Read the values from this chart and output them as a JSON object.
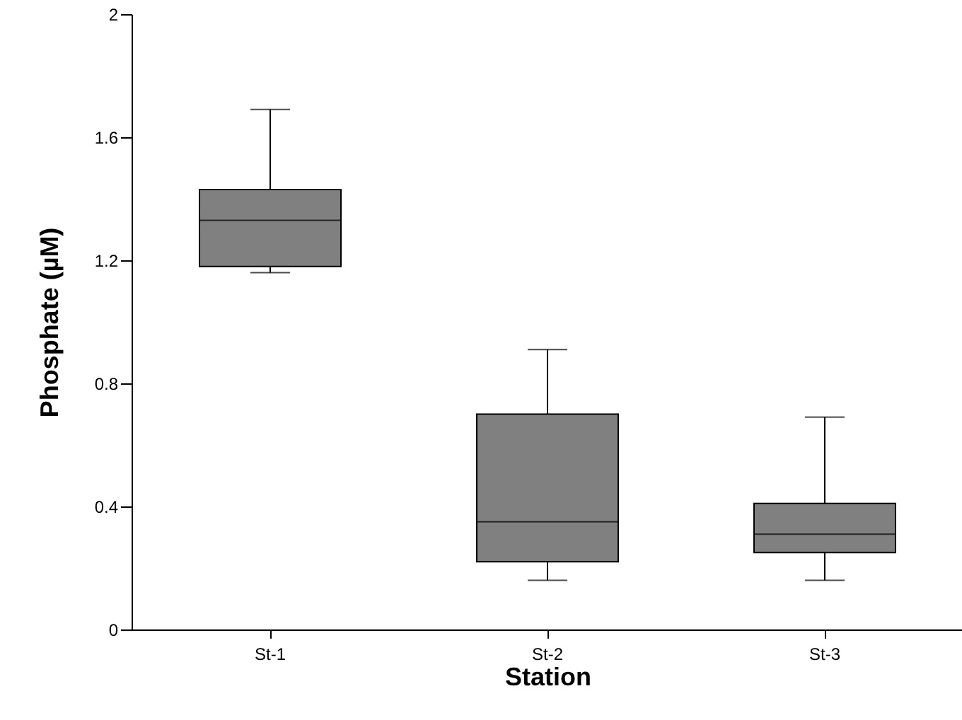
{
  "chart_data": {
    "type": "box",
    "xlabel": "Station",
    "ylabel": "Phosphate (µM)",
    "categories": [
      "St-1",
      "St-2",
      "St-3"
    ],
    "boxes": [
      {
        "low": 1.16,
        "q1": 1.18,
        "median": 1.33,
        "q3": 1.43,
        "high": 1.69
      },
      {
        "low": 0.16,
        "q1": 0.22,
        "median": 0.35,
        "q3": 0.7,
        "high": 0.91
      },
      {
        "low": 0.16,
        "q1": 0.25,
        "median": 0.31,
        "q3": 0.41,
        "high": 0.69
      }
    ],
    "color": "#808080",
    "ylim": [
      0,
      2
    ],
    "yticks": [
      0,
      0.4,
      0.8,
      1.2,
      1.6,
      2
    ],
    "grid": false
  }
}
